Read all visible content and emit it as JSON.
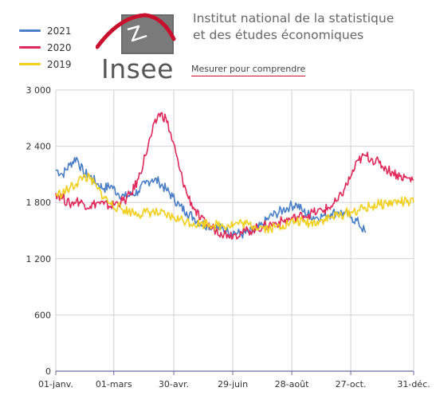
{
  "header": {
    "institute_line1": "Institut national de la statistique",
    "institute_line2": "et des études économiques",
    "logo_text": "Insee",
    "tagline": "Mesurer pour comprendre"
  },
  "legend": [
    {
      "label": "2021",
      "color": "#4a7ec6"
    },
    {
      "label": "2020",
      "color": "#e0285a"
    },
    {
      "label": "2019",
      "color": "#f2cf1a"
    }
  ],
  "colors": {
    "grid": "#d2d2d2",
    "axis": "#6a6aa0",
    "tick_text": "#333333",
    "logo_red": "#c8102e",
    "logo_grey": "#555555"
  },
  "chart_data": {
    "type": "line",
    "title": "",
    "xlabel": "",
    "ylabel": "",
    "ylim": [
      0,
      3000
    ],
    "y_ticks": [
      0,
      600,
      1200,
      1800,
      2400,
      3000
    ],
    "y_tick_labels": [
      "0",
      "600",
      "1 200",
      "1 800",
      "2 400",
      "3 000"
    ],
    "x_ticks": [
      1,
      60,
      121,
      181,
      241,
      301,
      365
    ],
    "x_tick_labels": [
      "01-janv.",
      "01-mars",
      "30-avr.",
      "29-juin",
      "28-août",
      "27-oct.",
      "31-déc."
    ],
    "x_unit": "day of year",
    "grid": true,
    "legend_position": "top-left",
    "series": [
      {
        "name": "2021",
        "color": "#4a7ec6",
        "x": [
          1,
          8,
          15,
          22,
          29,
          36,
          43,
          50,
          57,
          64,
          71,
          78,
          85,
          92,
          99,
          106,
          113,
          120,
          127,
          134,
          141,
          148,
          155,
          162,
          169,
          176,
          183,
          190,
          197,
          204,
          211,
          218,
          225,
          232,
          239,
          246,
          253,
          260,
          267,
          274,
          281,
          288,
          295,
          302,
          309,
          316
        ],
        "values": [
          2150,
          2100,
          2200,
          2280,
          2120,
          2080,
          2000,
          1950,
          1980,
          1900,
          1860,
          1880,
          1920,
          2000,
          2050,
          2020,
          1940,
          1860,
          1760,
          1700,
          1640,
          1580,
          1560,
          1540,
          1520,
          1500,
          1480,
          1460,
          1480,
          1500,
          1560,
          1640,
          1680,
          1720,
          1760,
          1780,
          1700,
          1660,
          1640,
          1660,
          1680,
          1700,
          1680,
          1640,
          1580,
          1480
        ]
      },
      {
        "name": "2020",
        "color": "#e0285a",
        "x": [
          1,
          8,
          15,
          22,
          29,
          36,
          43,
          50,
          57,
          64,
          71,
          78,
          85,
          92,
          99,
          106,
          113,
          120,
          127,
          134,
          141,
          148,
          155,
          162,
          169,
          176,
          183,
          190,
          197,
          204,
          211,
          218,
          225,
          232,
          239,
          246,
          253,
          260,
          267,
          274,
          281,
          288,
          295,
          302,
          309,
          316,
          323,
          330,
          337,
          344,
          351,
          358,
          365
        ],
        "values": [
          1900,
          1850,
          1780,
          1820,
          1790,
          1760,
          1800,
          1780,
          1760,
          1800,
          1820,
          1900,
          2050,
          2300,
          2550,
          2750,
          2700,
          2450,
          2150,
          1900,
          1750,
          1620,
          1560,
          1520,
          1480,
          1460,
          1460,
          1480,
          1500,
          1520,
          1540,
          1560,
          1580,
          1600,
          1620,
          1640,
          1660,
          1680,
          1700,
          1720,
          1760,
          1820,
          1950,
          2100,
          2250,
          2300,
          2260,
          2220,
          2160,
          2120,
          2080,
          2060,
          2040
        ]
      },
      {
        "name": "2019",
        "color": "#f2cf1a",
        "x": [
          1,
          8,
          15,
          22,
          29,
          36,
          43,
          50,
          57,
          64,
          71,
          78,
          85,
          92,
          99,
          106,
          113,
          120,
          127,
          134,
          141,
          148,
          155,
          162,
          169,
          176,
          183,
          190,
          197,
          204,
          211,
          218,
          225,
          232,
          239,
          246,
          253,
          260,
          267,
          274,
          281,
          288,
          295,
          302,
          309,
          316,
          323,
          330,
          337,
          344,
          351,
          358,
          365
        ],
        "values": [
          1880,
          1900,
          1950,
          2000,
          2080,
          2050,
          1950,
          1860,
          1780,
          1750,
          1720,
          1700,
          1680,
          1690,
          1700,
          1680,
          1660,
          1640,
          1620,
          1600,
          1580,
          1570,
          1580,
          1560,
          1550,
          1560,
          1570,
          1580,
          1560,
          1550,
          1540,
          1520,
          1540,
          1560,
          1580,
          1600,
          1590,
          1580,
          1600,
          1620,
          1640,
          1660,
          1680,
          1700,
          1720,
          1740,
          1760,
          1780,
          1790,
          1800,
          1810,
          1800,
          1800
        ]
      }
    ]
  }
}
